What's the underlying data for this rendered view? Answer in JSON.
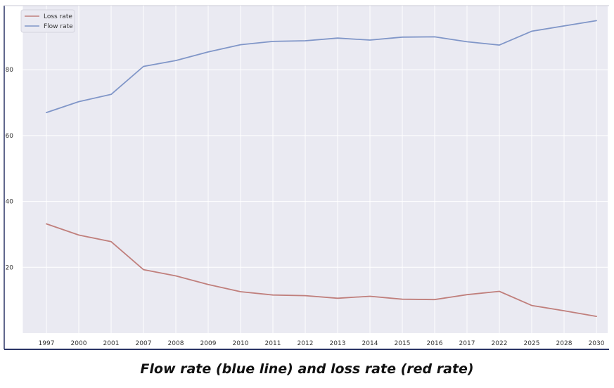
{
  "caption": "Flow rate (blue line) and loss rate (red rate)",
  "chart_data": {
    "type": "line",
    "title": "",
    "xlabel": "",
    "ylabel": "",
    "categories": [
      "1997",
      "2000",
      "2001",
      "2007",
      "2008",
      "2009",
      "2010",
      "2011",
      "2012",
      "2013",
      "2014",
      "2015",
      "2016",
      "2017",
      "2022",
      "2025",
      "2028",
      "2030"
    ],
    "ylim": [
      0,
      97
    ],
    "yticks": [
      20,
      40,
      60,
      80
    ],
    "grid": true,
    "legend_position": "top-left",
    "background": "#eaeaf2",
    "series": [
      {
        "name": "Loss rate",
        "color": "#c07f7c",
        "values": [
          33.2,
          29.8,
          27.8,
          19.3,
          17.4,
          14.8,
          12.6,
          11.6,
          11.4,
          10.6,
          11.2,
          10.3,
          10.2,
          11.7,
          12.7,
          8.4,
          6.8,
          5.1
        ]
      },
      {
        "name": "Flow rate",
        "color": "#8096c8",
        "values": [
          67.0,
          70.3,
          72.5,
          81.0,
          82.8,
          85.4,
          87.6,
          88.6,
          88.8,
          89.6,
          89.0,
          89.9,
          90.0,
          88.5,
          87.5,
          91.7,
          93.3,
          94.9
        ]
      }
    ]
  }
}
